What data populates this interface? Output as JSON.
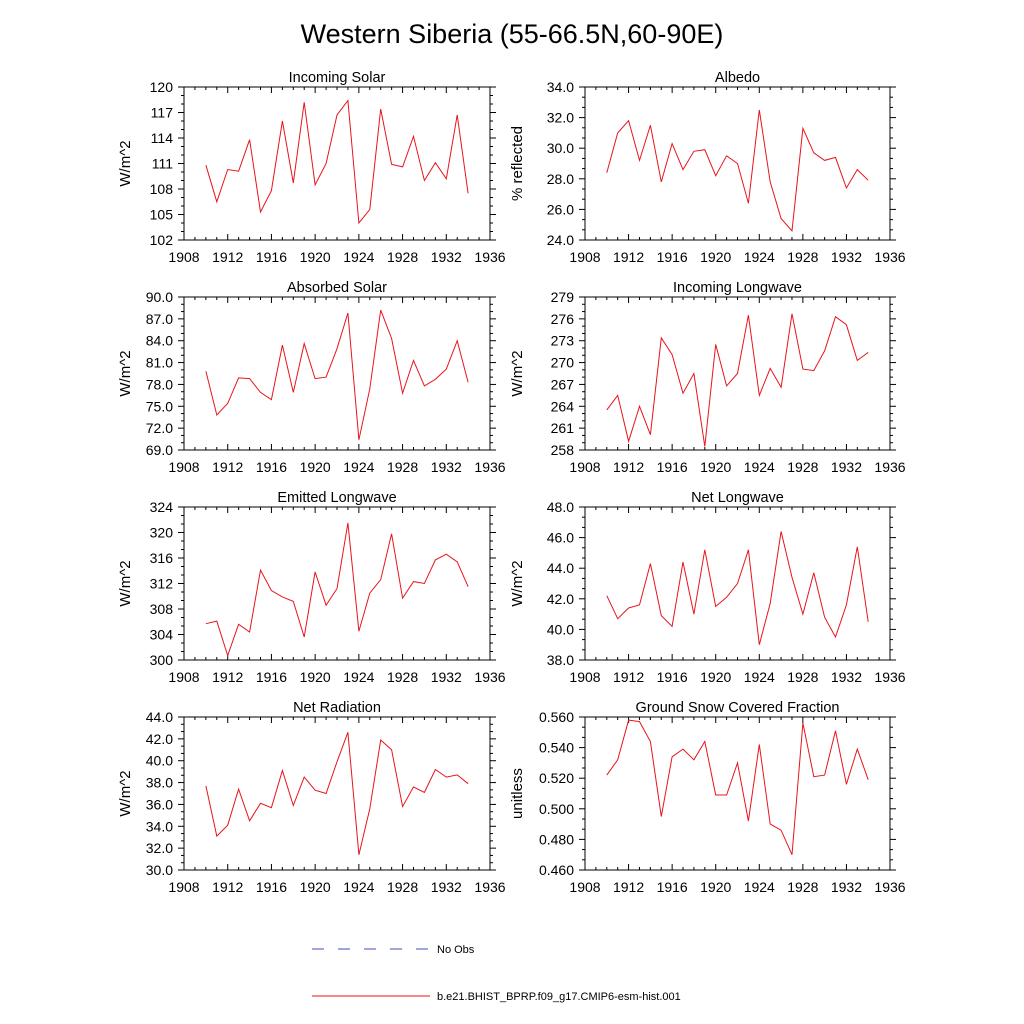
{
  "title": "Western Siberia (55-66.5N,60-90E)",
  "colors": {
    "model": "#e8141c",
    "obs": "#3f4fb4",
    "axis": "#000000"
  },
  "legend": {
    "obs_label": "No Obs",
    "model_label": "b.e21.BHIST_BPRP.f09_g17.CMIP6-esm-hist.001"
  },
  "chart_data": [
    {
      "type": "line",
      "title": "Incoming Solar",
      "ylabel": "W/m^2",
      "xlim": [
        1908,
        1936
      ],
      "xticks": [
        "1908",
        "1912",
        "1916",
        "1920",
        "1924",
        "1928",
        "1932",
        "1936"
      ],
      "ylim": [
        102,
        120
      ],
      "yticks": [
        "102",
        "105",
        "108",
        "111",
        "114",
        "117",
        "120"
      ],
      "x": [
        1910,
        1911,
        1912,
        1913,
        1914,
        1915,
        1916,
        1917,
        1918,
        1919,
        1920,
        1921,
        1922,
        1923,
        1924,
        1925,
        1926,
        1927,
        1928,
        1929,
        1930,
        1931,
        1932,
        1933,
        1934
      ],
      "series": [
        {
          "values": [
            110.8,
            106.5,
            110.3,
            110.1,
            113.8,
            105.3,
            107.8,
            116.0,
            108.7,
            118.2,
            108.5,
            111.0,
            116.7,
            118.4,
            104.0,
            105.6,
            117.4,
            110.9,
            110.6,
            114.2,
            109.0,
            111.1,
            109.2,
            116.7,
            107.5
          ]
        }
      ]
    },
    {
      "type": "line",
      "title": "Albedo",
      "ylabel": "% reflected",
      "xlim": [
        1908,
        1936
      ],
      "xticks": [
        "1908",
        "1912",
        "1916",
        "1920",
        "1924",
        "1928",
        "1932",
        "1936"
      ],
      "ylim": [
        24,
        34
      ],
      "yticks": [
        "24.0",
        "26.0",
        "28.0",
        "30.0",
        "32.0",
        "34.0"
      ],
      "x": [
        1910,
        1911,
        1912,
        1913,
        1914,
        1915,
        1916,
        1917,
        1918,
        1919,
        1920,
        1921,
        1922,
        1923,
        1924,
        1925,
        1926,
        1927,
        1928,
        1929,
        1930,
        1931,
        1932,
        1933,
        1934
      ],
      "series": [
        {
          "values": [
            28.4,
            31.0,
            31.8,
            29.2,
            31.5,
            27.8,
            30.3,
            28.6,
            29.8,
            29.9,
            28.2,
            29.5,
            29.0,
            26.4,
            32.5,
            27.8,
            25.4,
            24.6,
            31.3,
            29.7,
            29.2,
            29.4,
            27.4,
            28.6,
            27.9
          ]
        }
      ]
    },
    {
      "type": "line",
      "title": "Absorbed Solar",
      "ylabel": "W/m^2",
      "xlim": [
        1908,
        1936
      ],
      "xticks": [
        "1908",
        "1912",
        "1916",
        "1920",
        "1924",
        "1928",
        "1932",
        "1936"
      ],
      "ylim": [
        69,
        90
      ],
      "yticks": [
        "69.0",
        "72.0",
        "75.0",
        "78.0",
        "81.0",
        "84.0",
        "87.0",
        "90.0"
      ],
      "x": [
        1910,
        1911,
        1912,
        1913,
        1914,
        1915,
        1916,
        1917,
        1918,
        1919,
        1920,
        1921,
        1922,
        1923,
        1924,
        1925,
        1926,
        1927,
        1928,
        1929,
        1930,
        1931,
        1932,
        1933,
        1934
      ],
      "series": [
        {
          "values": [
            79.8,
            73.8,
            75.4,
            78.9,
            78.8,
            76.9,
            75.9,
            83.4,
            76.9,
            83.6,
            78.8,
            79.0,
            82.9,
            87.8,
            70.4,
            77.4,
            88.2,
            84.3,
            76.8,
            81.3,
            77.8,
            78.7,
            80.1,
            84.0,
            78.3
          ]
        }
      ]
    },
    {
      "type": "line",
      "title": "Incoming Longwave",
      "ylabel": "W/m^2",
      "xlim": [
        1908,
        1936
      ],
      "xticks": [
        "1908",
        "1912",
        "1916",
        "1920",
        "1924",
        "1928",
        "1932",
        "1936"
      ],
      "ylim": [
        258,
        279
      ],
      "yticks": [
        "258",
        "261",
        "264",
        "267",
        "270",
        "273",
        "276",
        "279"
      ],
      "x": [
        1910,
        1911,
        1912,
        1913,
        1914,
        1915,
        1916,
        1917,
        1918,
        1919,
        1920,
        1921,
        1922,
        1923,
        1924,
        1925,
        1926,
        1927,
        1928,
        1929,
        1930,
        1931,
        1932,
        1933,
        1934
      ],
      "series": [
        {
          "values": [
            263.5,
            265.5,
            259.2,
            264.0,
            260.1,
            273.4,
            271.1,
            265.8,
            268.5,
            258.5,
            272.5,
            266.8,
            268.5,
            276.5,
            265.5,
            269.2,
            266.6,
            276.7,
            269.1,
            268.9,
            271.6,
            276.3,
            275.2,
            270.3,
            271.4
          ]
        }
      ]
    },
    {
      "type": "line",
      "title": "Emitted Longwave",
      "ylabel": "W/m^2",
      "xlim": [
        1908,
        1936
      ],
      "xticks": [
        "1908",
        "1912",
        "1916",
        "1920",
        "1924",
        "1928",
        "1932",
        "1936"
      ],
      "ylim": [
        300,
        324
      ],
      "yticks": [
        "300",
        "304",
        "308",
        "312",
        "316",
        "320",
        "324"
      ],
      "x": [
        1910,
        1911,
        1912,
        1913,
        1914,
        1915,
        1916,
        1917,
        1918,
        1919,
        1920,
        1921,
        1922,
        1923,
        1924,
        1925,
        1926,
        1927,
        1928,
        1929,
        1930,
        1931,
        1932,
        1933,
        1934
      ],
      "series": [
        {
          "values": [
            305.7,
            306.1,
            300.7,
            305.6,
            304.4,
            314.1,
            310.9,
            309.9,
            309.2,
            303.6,
            313.8,
            308.6,
            311.2,
            321.5,
            304.5,
            310.5,
            312.6,
            319.8,
            309.7,
            312.3,
            312.0,
            315.7,
            316.6,
            315.4,
            311.5
          ]
        }
      ]
    },
    {
      "type": "line",
      "title": "Net Longwave",
      "ylabel": "W/m^2",
      "xlim": [
        1908,
        1936
      ],
      "xticks": [
        "1908",
        "1912",
        "1916",
        "1920",
        "1924",
        "1928",
        "1932",
        "1936"
      ],
      "ylim": [
        38,
        48
      ],
      "yticks": [
        "38.0",
        "40.0",
        "42.0",
        "44.0",
        "46.0",
        "48.0"
      ],
      "x": [
        1910,
        1911,
        1912,
        1913,
        1914,
        1915,
        1916,
        1917,
        1918,
        1919,
        1920,
        1921,
        1922,
        1923,
        1924,
        1925,
        1926,
        1927,
        1928,
        1929,
        1930,
        1931,
        1932,
        1933,
        1934
      ],
      "series": [
        {
          "values": [
            42.2,
            40.7,
            41.4,
            41.6,
            44.3,
            40.9,
            40.2,
            44.4,
            41.0,
            45.2,
            41.5,
            42.1,
            43.0,
            45.2,
            39.0,
            41.7,
            46.4,
            43.4,
            41.0,
            43.7,
            40.8,
            39.5,
            41.6,
            45.4,
            40.5
          ]
        }
      ]
    },
    {
      "type": "line",
      "title": "Net Radiation",
      "ylabel": "W/m^2",
      "xlim": [
        1908,
        1936
      ],
      "xticks": [
        "1908",
        "1912",
        "1916",
        "1920",
        "1924",
        "1928",
        "1932",
        "1936"
      ],
      "ylim": [
        30,
        44
      ],
      "yticks": [
        "30.0",
        "32.0",
        "34.0",
        "36.0",
        "38.0",
        "40.0",
        "42.0",
        "44.0"
      ],
      "x": [
        1910,
        1911,
        1912,
        1913,
        1914,
        1915,
        1916,
        1917,
        1918,
        1919,
        1920,
        1921,
        1922,
        1923,
        1924,
        1925,
        1926,
        1927,
        1928,
        1929,
        1930,
        1931,
        1932,
        1933,
        1934
      ],
      "series": [
        {
          "values": [
            37.7,
            33.1,
            34.1,
            37.4,
            34.5,
            36.1,
            35.7,
            39.1,
            35.9,
            38.5,
            37.3,
            37.0,
            39.9,
            42.6,
            31.4,
            35.6,
            41.9,
            41.0,
            35.8,
            37.6,
            37.1,
            39.2,
            38.5,
            38.7,
            37.9
          ]
        }
      ]
    },
    {
      "type": "line",
      "title": "Ground Snow Covered Fraction",
      "ylabel": "unitless",
      "xlim": [
        1908,
        1936
      ],
      "xticks": [
        "1908",
        "1912",
        "1916",
        "1920",
        "1924",
        "1928",
        "1932",
        "1936"
      ],
      "ylim": [
        0.46,
        0.56
      ],
      "yticks": [
        "0.460",
        "0.480",
        "0.500",
        "0.520",
        "0.540",
        "0.560"
      ],
      "x": [
        1910,
        1911,
        1912,
        1913,
        1914,
        1915,
        1916,
        1917,
        1918,
        1919,
        1920,
        1921,
        1922,
        1923,
        1924,
        1925,
        1926,
        1927,
        1928,
        1929,
        1930,
        1931,
        1932,
        1933,
        1934
      ],
      "series": [
        {
          "values": [
            0.522,
            0.532,
            0.558,
            0.557,
            0.544,
            0.495,
            0.534,
            0.539,
            0.532,
            0.544,
            0.509,
            0.509,
            0.53,
            0.492,
            0.542,
            0.49,
            0.486,
            0.47,
            0.556,
            0.521,
            0.522,
            0.551,
            0.516,
            0.539,
            0.519
          ]
        }
      ]
    }
  ]
}
